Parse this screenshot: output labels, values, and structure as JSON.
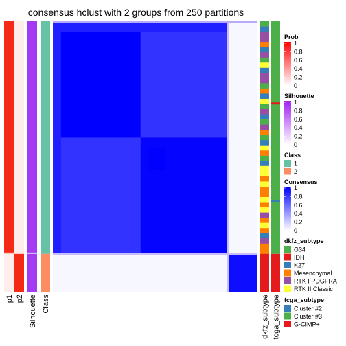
{
  "chart_data": {
    "type": "heatmap",
    "title": "consensus hclust with 2 groups from 250 partitions",
    "n_samples": 250,
    "groups": [
      {
        "class": 1,
        "fraction": 0.86,
        "class_color": "#66C2A5"
      },
      {
        "class": 2,
        "fraction": 0.14,
        "class_color": "#FC8D62"
      }
    ],
    "matrix_blocks": [
      {
        "rows": [
          0.0,
          0.86
        ],
        "cols": [
          0.0,
          0.86
        ],
        "consensus": 0.95
      },
      {
        "rows": [
          0.0,
          0.86
        ],
        "cols": [
          0.86,
          1.0
        ],
        "consensus": 0.03
      },
      {
        "rows": [
          0.86,
          1.0
        ],
        "cols": [
          0.0,
          0.86
        ],
        "consensus": 0.03
      },
      {
        "rows": [
          0.86,
          1.0
        ],
        "cols": [
          0.86,
          1.0
        ],
        "consensus": 0.95
      }
    ],
    "annotation_columns": {
      "left": [
        "p1",
        "p2",
        "Silhouette",
        "Class"
      ],
      "right": [
        "dkfz_subtype",
        "tcga_subtype"
      ]
    },
    "legends": [
      {
        "title": "Prob",
        "type": "continuous",
        "ticks": [
          "1",
          "0.8",
          "0.6",
          "0.4",
          "0.2",
          "0"
        ],
        "colors": [
          "#FF0000",
          "#FFFFFF"
        ]
      },
      {
        "title": "Silhouette",
        "type": "continuous",
        "ticks": [
          "1",
          "0.8",
          "0.6",
          "0.4",
          "0.2",
          "0"
        ],
        "colors": [
          "#A020F0",
          "#FFFFFF"
        ]
      },
      {
        "title": "Class",
        "type": "discrete",
        "items": [
          {
            "label": "1",
            "color": "#66C2A5"
          },
          {
            "label": "2",
            "color": "#FC8D62"
          }
        ]
      },
      {
        "title": "Consensus",
        "type": "continuous",
        "ticks": [
          "1",
          "0.8",
          "0.6",
          "0.4",
          "0.2",
          "0"
        ],
        "colors": [
          "#0000FF",
          "#FFFFFF"
        ]
      },
      {
        "title": "dkfz_subtype",
        "type": "discrete",
        "items": [
          {
            "label": "G34",
            "color": "#4DAF4A"
          },
          {
            "label": "IDH",
            "color": "#E41A1C"
          },
          {
            "label": "K27",
            "color": "#377EB8"
          },
          {
            "label": "Mesenchymal",
            "color": "#FF7F00"
          },
          {
            "label": "RTK I PDGFRA",
            "color": "#984EA3"
          },
          {
            "label": "RTK II Classic",
            "color": "#FFFF33"
          }
        ]
      },
      {
        "title": "tcga_subtype",
        "type": "discrete",
        "items": [
          {
            "label": "Cluster #2",
            "color": "#377EB8"
          },
          {
            "label": "Cluster #3",
            "color": "#4DAF4A"
          },
          {
            "label": "G-CIMP+",
            "color": "#E41A1C"
          }
        ]
      }
    ]
  }
}
